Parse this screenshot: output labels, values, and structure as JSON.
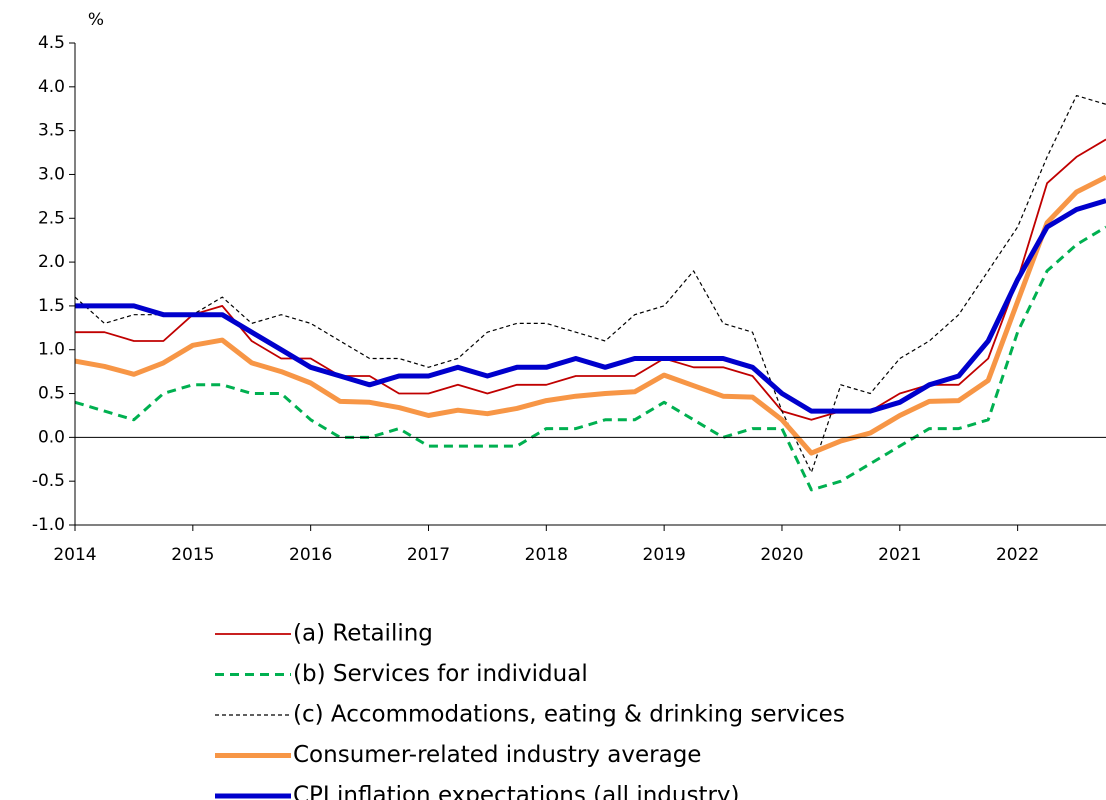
{
  "chart_data": {
    "type": "line",
    "y_unit_label": "%",
    "x": [
      2014,
      2014.25,
      2014.5,
      2014.75,
      2015,
      2015.25,
      2015.5,
      2015.75,
      2016,
      2016.25,
      2016.5,
      2016.75,
      2017,
      2017.25,
      2017.5,
      2017.75,
      2018,
      2018.25,
      2018.5,
      2018.75,
      2019,
      2019.25,
      2019.5,
      2019.75,
      2020,
      2020.25,
      2020.5,
      2020.75,
      2021,
      2021.25,
      2021.5,
      2021.75,
      2022,
      2022.25,
      2022.5,
      2022.75
    ],
    "xlim": [
      2014,
      2022.75
    ],
    "xticks": [
      2014,
      2015,
      2016,
      2017,
      2018,
      2019,
      2020,
      2021,
      2022
    ],
    "ylim": [
      -1,
      4.5
    ],
    "yticks": [
      4.5,
      {
        "value": 4,
        "label": "4.0"
      },
      3.5,
      {
        "value": 3,
        "label": "3.0"
      },
      2.5,
      {
        "value": 2,
        "label": "2.0"
      },
      1.5,
      {
        "value": 1,
        "label": "1.0"
      },
      0.5,
      {
        "value": 0,
        "label": "0.0"
      },
      -0.5,
      {
        "value": -1,
        "label": "-1.0"
      }
    ],
    "zero_line": true,
    "series": [
      {
        "name": "(a) Retailing",
        "color": "#c00000",
        "linewidth": 1.8,
        "linestyle": "solid",
        "values": [
          1.2,
          1.2,
          1.1,
          1.1,
          1.4,
          1.5,
          1.1,
          0.9,
          0.9,
          0.7,
          0.7,
          0.5,
          0.5,
          0.6,
          0.5,
          0.6,
          0.6,
          0.7,
          0.7,
          0.7,
          0.9,
          0.8,
          0.8,
          0.7,
          0.3,
          0.2,
          0.3,
          0.3,
          0.5,
          0.6,
          0.6,
          0.9,
          1.8,
          2.9,
          3.2,
          3.4
        ]
      },
      {
        "name": "(b) Services for individual",
        "color": "#00b050",
        "linewidth": 3,
        "linestyle": "dashed",
        "values": [
          0.4,
          0.3,
          0.2,
          0.5,
          0.6,
          0.6,
          0.5,
          0.5,
          0.2,
          0.0,
          0.0,
          0.1,
          -0.1,
          -0.1,
          -0.1,
          -0.1,
          0.1,
          0.1,
          0.2,
          0.2,
          0.4,
          0.2,
          0.0,
          0.1,
          0.1,
          -0.6,
          -0.5,
          -0.3,
          -0.1,
          0.1,
          0.1,
          0.2,
          1.2,
          1.9,
          2.2,
          2.4
        ]
      },
      {
        "name": "(c) Accommodations, eating & drinking services",
        "color": "#000000",
        "linewidth": 1.2,
        "linestyle": "dotted",
        "values": [
          1.6,
          1.3,
          1.4,
          1.4,
          1.4,
          1.6,
          1.3,
          1.4,
          1.3,
          1.1,
          0.9,
          0.9,
          0.8,
          0.9,
          1.2,
          1.3,
          1.3,
          1.2,
          1.1,
          1.4,
          1.5,
          1.9,
          1.3,
          1.2,
          0.3,
          -0.4,
          0.6,
          0.5,
          0.9,
          1.1,
          1.4,
          1.9,
          2.4,
          3.2,
          3.9,
          3.8
        ]
      },
      {
        "name": "Consumer-related industry average",
        "color": "#f79646",
        "linewidth": 5,
        "linestyle": "solid",
        "values": [
          0.87,
          0.81,
          0.72,
          0.85,
          1.05,
          1.11,
          0.85,
          0.75,
          0.62,
          0.41,
          0.4,
          0.34,
          0.25,
          0.31,
          0.27,
          0.33,
          0.42,
          0.47,
          0.5,
          0.52,
          0.71,
          0.59,
          0.47,
          0.46,
          0.2,
          -0.18,
          -0.04,
          0.05,
          0.25,
          0.41,
          0.42,
          0.65,
          1.55,
          2.45,
          2.8,
          2.97
        ]
      },
      {
        "name": "CPI inflation expectations (all industry)",
        "color": "#0000cc",
        "linewidth": 5,
        "linestyle": "solid",
        "values": [
          1.5,
          1.5,
          1.5,
          1.4,
          1.4,
          1.4,
          1.2,
          1.0,
          0.8,
          0.7,
          0.6,
          0.7,
          0.7,
          0.8,
          0.7,
          0.8,
          0.8,
          0.9,
          0.8,
          0.9,
          0.9,
          0.9,
          0.9,
          0.8,
          0.5,
          0.3,
          0.3,
          0.3,
          0.4,
          0.6,
          0.7,
          1.1,
          1.8,
          2.4,
          2.6,
          2.7
        ]
      }
    ]
  }
}
